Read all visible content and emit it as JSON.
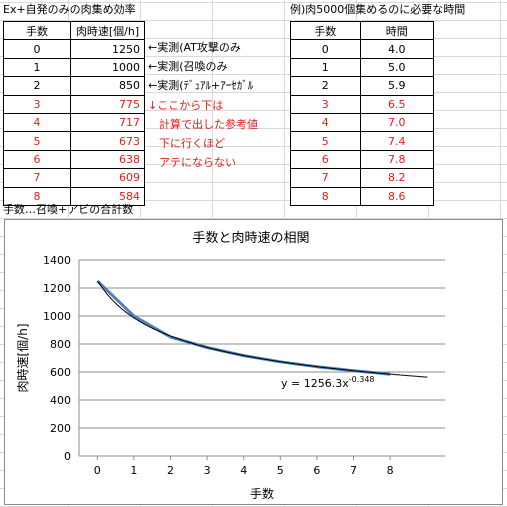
{
  "left_title": "Ex+自発のみの肉集め効率",
  "right_title": "例)肉5000個集めるのに必要な時間",
  "footnote": "手数…召喚+アビの合計数",
  "left_table": {
    "headers": [
      "手数",
      "肉時速[個/h]"
    ],
    "rows": [
      {
        "n": "0",
        "v": "1250",
        "estimated": false
      },
      {
        "n": "1",
        "v": "1000",
        "estimated": false
      },
      {
        "n": "2",
        "v": "850",
        "estimated": false
      },
      {
        "n": "3",
        "v": "775",
        "estimated": true
      },
      {
        "n": "4",
        "v": "717",
        "estimated": true
      },
      {
        "n": "5",
        "v": "673",
        "estimated": true
      },
      {
        "n": "6",
        "v": "638",
        "estimated": true
      },
      {
        "n": "7",
        "v": "609",
        "estimated": true
      },
      {
        "n": "8",
        "v": "584",
        "estimated": true
      }
    ]
  },
  "right_table": {
    "headers": [
      "手数",
      "時間"
    ],
    "rows": [
      {
        "n": "0",
        "v": "4.0",
        "estimated": false
      },
      {
        "n": "1",
        "v": "5.0",
        "estimated": false
      },
      {
        "n": "2",
        "v": "5.9",
        "estimated": false
      },
      {
        "n": "3",
        "v": "6.5",
        "estimated": true
      },
      {
        "n": "4",
        "v": "7.0",
        "estimated": true
      },
      {
        "n": "5",
        "v": "7.4",
        "estimated": true
      },
      {
        "n": "6",
        "v": "7.8",
        "estimated": true
      },
      {
        "n": "7",
        "v": "8.2",
        "estimated": true
      },
      {
        "n": "8",
        "v": "8.6",
        "estimated": true
      }
    ]
  },
  "notes": [
    {
      "text": "←実測(AT攻撃のみ",
      "red": false
    },
    {
      "text": "←実測(召喚のみ",
      "red": false
    },
    {
      "text": "←実測(ﾃﾞｭｱﾙ+ｱｰｾｶﾞﾙ",
      "red": false
    },
    {
      "text": "↓ここから下は",
      "red": true
    },
    {
      "text": "　計算で出した参考値",
      "red": true
    },
    {
      "text": "　下に行くほど",
      "red": true
    },
    {
      "text": "　アテにならない",
      "red": true
    }
  ],
  "colors": {
    "estimated_text": "#e0201c",
    "series_line": "#4f81bd",
    "trendline": "#000000"
  },
  "chart_data": {
    "type": "line",
    "title": "手数と肉時速の相関",
    "xlabel": "手数",
    "ylabel": "肉時速[個/h]",
    "x": [
      0,
      1,
      2,
      3,
      4,
      5,
      6,
      7,
      8
    ],
    "series": [
      {
        "values": [
          1250,
          1000,
          850,
          775,
          717,
          673,
          638,
          609,
          584
        ]
      }
    ],
    "trendline": {
      "type": "power",
      "a": 1256.3,
      "b": -0.348
    },
    "trend_label": "y = 1256.3x",
    "trend_exp": "-0.348",
    "xlim": [
      -0.5,
      9.5
    ],
    "ylim": [
      0,
      1400
    ],
    "yticks": [
      0,
      200,
      400,
      600,
      800,
      1000,
      1200,
      1400
    ],
    "xticks": [
      0,
      1,
      2,
      3,
      4,
      5,
      6,
      7,
      8
    ],
    "grid": "horizontal",
    "legend": "none"
  }
}
